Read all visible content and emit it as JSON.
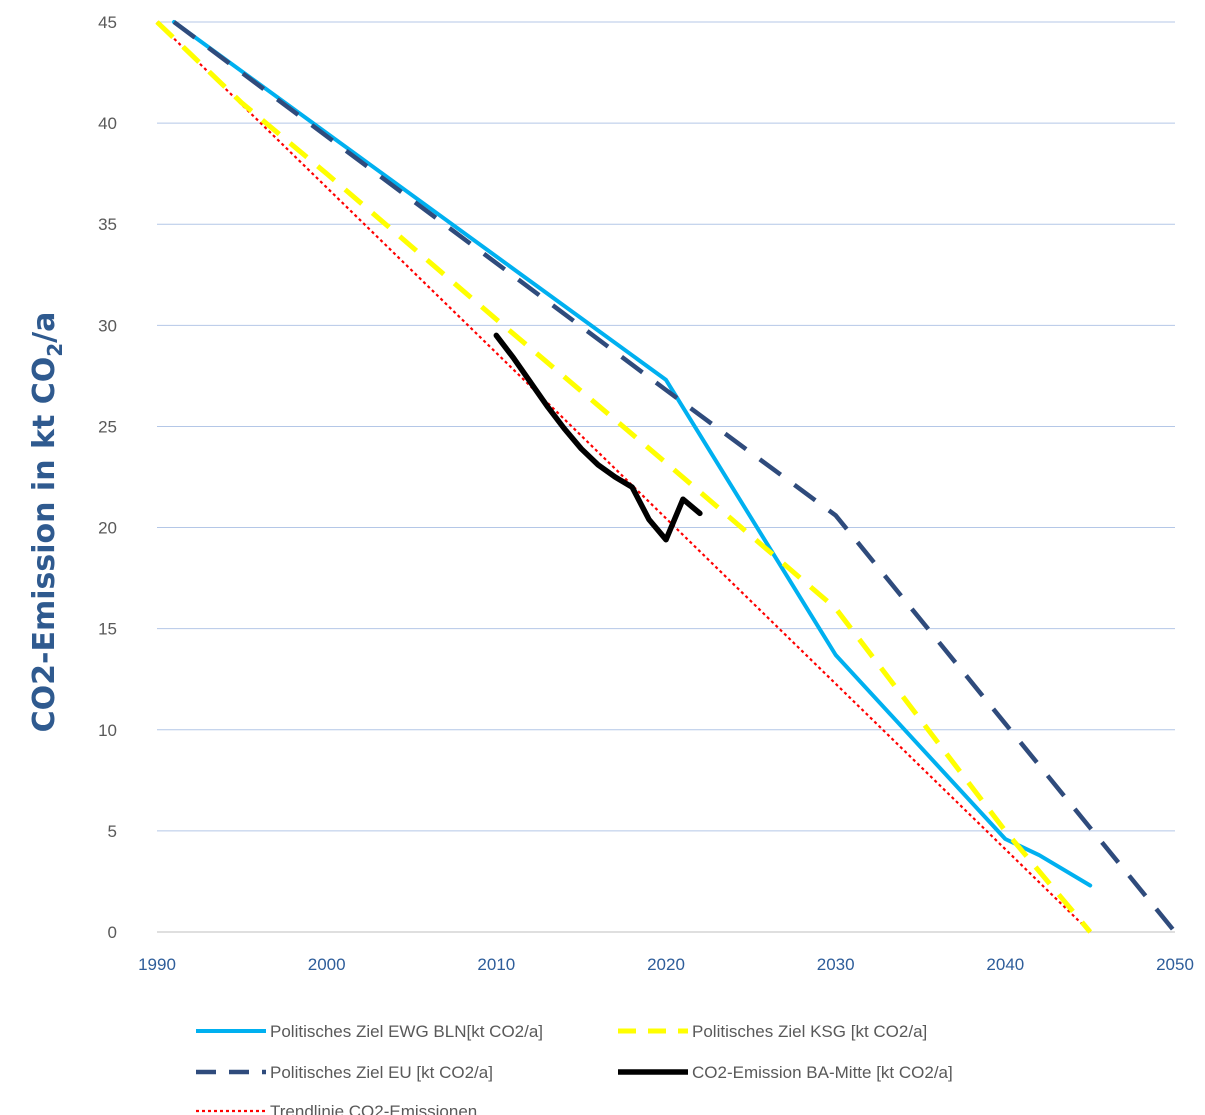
{
  "chart_data": {
    "type": "line",
    "title": "",
    "xlabel": "",
    "ylabel": "CO2-Emission in kt CO2/a",
    "ylabel_parts": {
      "pre": "CO2-Emission in kt CO",
      "sub": "2",
      "post": "/a"
    },
    "xlim": [
      1990,
      2050
    ],
    "ylim": [
      0,
      45
    ],
    "x_ticks": [
      1990,
      2000,
      2010,
      2020,
      2030,
      2040,
      2050
    ],
    "y_ticks": [
      0,
      5,
      10,
      15,
      20,
      25,
      30,
      35,
      40,
      45
    ],
    "grid": true,
    "legend_position": "bottom",
    "series": [
      {
        "name": "Politisches Ziel EWG BLN[kt CO2/a]",
        "color": "#00b0f0",
        "style": "solid",
        "x": [
          1991,
          2020,
          2030,
          2040,
          2042,
          2045
        ],
        "y": [
          45,
          27.3,
          13.7,
          4.6,
          3.8,
          2.3
        ]
      },
      {
        "name": "Politisches Ziel KSG [kt CO2/a]",
        "color": "#ffff00",
        "style": "dashed",
        "x": [
          1990,
          1995,
          2000,
          2010,
          2020,
          2030,
          2040,
          2045
        ],
        "y": [
          45,
          41,
          37.5,
          30.3,
          23.2,
          16.0,
          5.0,
          0
        ]
      },
      {
        "name": "Politisches Ziel EU [kt CO2/a]",
        "color": "#2f4b7c",
        "style": "longdash",
        "x": [
          1991,
          2020,
          2030,
          2040,
          2050
        ],
        "y": [
          45,
          26.8,
          20.6,
          10.3,
          0
        ]
      },
      {
        "name": "CO2-Emission BA-Mitte [kt CO2/a]",
        "color": "#000000",
        "style": "solid-thick",
        "x": [
          2010,
          2011,
          2012,
          2013,
          2014,
          2015,
          2016,
          2017,
          2018,
          2019,
          2020,
          2021,
          2022
        ],
        "y": [
          29.5,
          28.4,
          27.2,
          26.0,
          24.9,
          23.9,
          23.1,
          22.5,
          22.0,
          20.4,
          19.4,
          21.4,
          20.7
        ]
      },
      {
        "name": "Trendlinie CO2-Emissionen",
        "color": "#ff0000",
        "style": "dotted",
        "x": [
          1990,
          2045
        ],
        "y": [
          45,
          0
        ]
      }
    ]
  }
}
